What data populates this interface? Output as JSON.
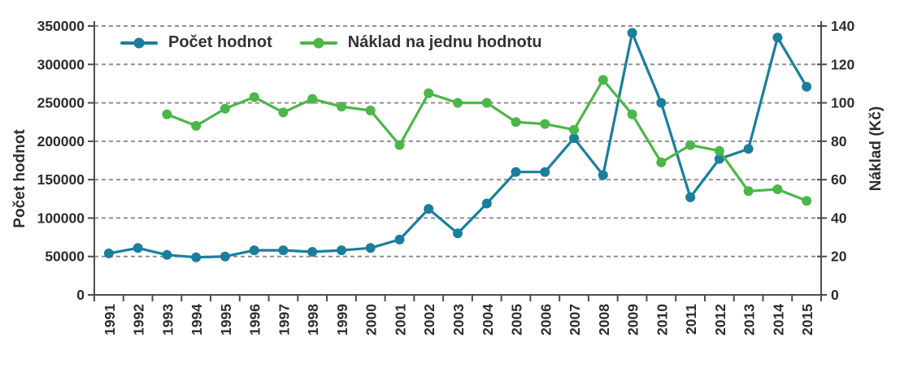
{
  "styles": {
    "teal": "#1a7f9c",
    "green": "#4bb748",
    "grid": "#909090",
    "axis": "#4d4d4d",
    "text": "#2d2d2d"
  },
  "chart_data": {
    "type": "line",
    "title": "",
    "legend_position": "top",
    "grid": "horizontal-dashed",
    "categories": [
      "1991",
      "1992",
      "1993",
      "1994",
      "1995",
      "1996",
      "1997",
      "1998",
      "1999",
      "2000",
      "2001",
      "2002",
      "2003",
      "2004",
      "2005",
      "2006",
      "2007",
      "2008",
      "2009",
      "2010",
      "2011",
      "2012",
      "2013",
      "2014",
      "2015"
    ],
    "series": [
      {
        "name": "Počet hodnot",
        "axis": "left",
        "color": "#1a7f9c",
        "values": [
          54000,
          61000,
          52000,
          49000,
          50000,
          58000,
          58000,
          56000,
          58000,
          61000,
          72000,
          112000,
          80000,
          119000,
          160000,
          160000,
          204000,
          156000,
          341000,
          250000,
          127000,
          177000,
          190000,
          335000,
          271000
        ]
      },
      {
        "name": "Náklad na jednu hodnotu",
        "axis": "right",
        "color": "#4bb748",
        "values": [
          null,
          null,
          94,
          88,
          97,
          103,
          95,
          102,
          98,
          96,
          78,
          105,
          100,
          100,
          90,
          89,
          86,
          112,
          94,
          69,
          78,
          75,
          54,
          55,
          49
        ]
      }
    ],
    "left_axis": {
      "label": "Počet hodnot",
      "min": 0,
      "max": 350000,
      "step": 50000,
      "ticks": [
        "0",
        "50000",
        "100000",
        "150000",
        "200000",
        "250000",
        "300000",
        "350000"
      ]
    },
    "right_axis": {
      "label": "Náklad (Kč)",
      "min": 0,
      "max": 140,
      "step": 20,
      "ticks": [
        "0",
        "20",
        "40",
        "60",
        "80",
        "100",
        "120",
        "140"
      ]
    }
  }
}
